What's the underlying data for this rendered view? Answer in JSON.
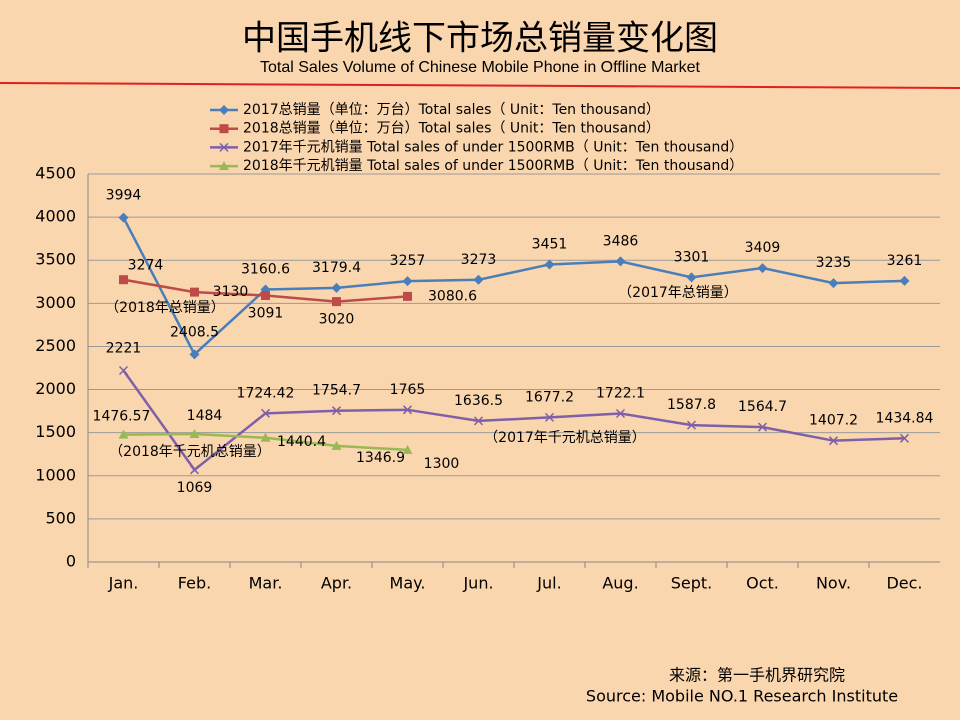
{
  "chart_data": {
    "type": "line",
    "title": "中国手机线下市场总销量变化图",
    "subtitle": "Total Sales Volume of Chinese Mobile Phone in Offline Market",
    "categories": [
      "Jan.",
      "Feb.",
      "Mar.",
      "Apr.",
      "May.",
      "Jun.",
      "Jul.",
      "Aug.",
      "Sept.",
      "Oct.",
      "Nov.",
      "Dec."
    ],
    "series": [
      {
        "name": "2017总销量（单位：万台）Total sales（ Unit：Ten thousand）",
        "color": "#4a7ebb",
        "marker": "diamond",
        "values": [
          3994,
          2408.5,
          3160.6,
          3179.4,
          3257,
          3273,
          3451,
          3486,
          3301,
          3409,
          3235,
          3261
        ]
      },
      {
        "name": "2018总销量（单位：万台）Total sales（ Unit：Ten thousand）",
        "color": "#be4b48",
        "marker": "square",
        "values": [
          3274,
          3130,
          3091,
          3020,
          3080.6,
          null,
          null,
          null,
          null,
          null,
          null,
          null
        ]
      },
      {
        "name": "2017年千元机销量 Total sales of under 1500RMB（ Unit：Ten thousand）",
        "color": "#7e5fa8",
        "marker": "x",
        "values": [
          2221,
          1069,
          1724.42,
          1754.7,
          1765,
          1636.5,
          1677.2,
          1722.1,
          1587.8,
          1564.7,
          1407.2,
          1434.84
        ]
      },
      {
        "name": "2018年千元机销量 Total sales of under 1500RMB（ Unit：Ten thousand）",
        "color": "#98b954",
        "marker": "triangle",
        "values": [
          1476.57,
          1484,
          1440.4,
          1346.9,
          1300,
          null,
          null,
          null,
          null,
          null,
          null,
          null
        ]
      }
    ],
    "annotations": [
      "（2018年总销量）",
      "（2017年总销量）",
      "（2018年千元机总销量）",
      "（2017年千元机总销量）"
    ],
    "source": [
      "来源：第一手机界研究院",
      "Source: Mobile NO.1 Research Institute"
    ],
    "ylim": [
      0,
      4500
    ],
    "yticks": [
      0,
      500,
      1000,
      1500,
      2000,
      2500,
      3000,
      3500,
      4000,
      4500
    ],
    "grid": true
  }
}
